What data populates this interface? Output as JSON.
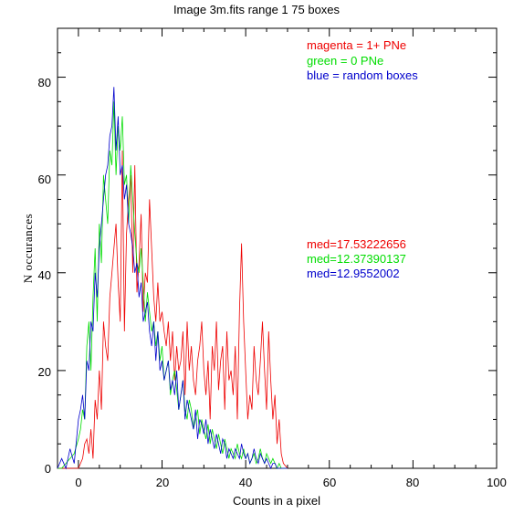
{
  "chart_data": {
    "type": "line",
    "title": "Image 3m.fits   range 1    75 boxes",
    "xlabel": "Counts in a pixel",
    "ylabel": "N  occurances",
    "xlim": [
      -5,
      100
    ],
    "ylim": [
      0,
      90
    ],
    "x_ticks": [
      0,
      20,
      40,
      60,
      80,
      100
    ],
    "y_ticks": [
      0,
      20,
      40,
      60,
      80
    ],
    "grid": false,
    "legend": [
      {
        "text": "magenta = 1+ PNe",
        "color": "#ee0000"
      },
      {
        "text": "green = 0 PNe",
        "color": "#00dd00"
      },
      {
        "text": "blue = random boxes",
        "color": "#0000cc"
      }
    ],
    "medians": [
      {
        "text": "med=17.53222656",
        "color": "#ee0000"
      },
      {
        "text": "med=12.37390137",
        "color": "#00dd00"
      },
      {
        "text": "med=12.9552002",
        "color": "#0000cc"
      }
    ],
    "series": [
      {
        "color": "#ee0000",
        "x": [
          -5,
          -4,
          -3,
          -2,
          -1,
          0,
          0.5,
          1,
          1.5,
          2,
          2.5,
          3,
          3.5,
          4,
          4.5,
          5,
          5.5,
          6,
          6.5,
          7,
          7.5,
          8,
          8.5,
          9,
          9.5,
          10,
          10.5,
          11,
          11.5,
          12,
          12.5,
          13,
          13.5,
          14,
          14.5,
          15,
          15.5,
          16,
          16.5,
          17,
          17.5,
          18,
          18.5,
          19,
          19.5,
          20,
          20.5,
          21,
          21.5,
          22,
          22.5,
          23,
          23.5,
          24,
          24.5,
          25,
          25.5,
          26,
          26.5,
          27,
          27.5,
          28,
          28.5,
          29,
          29.5,
          30,
          30.5,
          31,
          31.5,
          32,
          32.5,
          33,
          33.5,
          34,
          34.5,
          35,
          35.5,
          36,
          36.5,
          37,
          37.5,
          38,
          38.5,
          39,
          39.5,
          40,
          40.5,
          41,
          41.5,
          42,
          42.5,
          43,
          43.5,
          44,
          44.5,
          45,
          45.5,
          46,
          46.5,
          47,
          47.5,
          48,
          48.5,
          49,
          50
        ],
        "y": [
          0,
          0,
          0,
          0,
          0,
          0,
          1,
          2,
          5,
          6,
          3,
          8,
          2,
          14,
          10,
          20,
          12,
          30,
          25,
          22,
          35,
          40,
          45,
          50,
          38,
          30,
          65,
          28,
          48,
          55,
          60,
          40,
          62,
          36,
          42,
          52,
          32,
          40,
          38,
          55,
          45,
          35,
          30,
          38,
          30,
          32,
          28,
          25,
          30,
          22,
          28,
          18,
          25,
          20,
          22,
          28,
          15,
          30,
          20,
          25,
          18,
          15,
          22,
          25,
          30,
          20,
          15,
          22,
          10,
          25,
          20,
          30,
          16,
          22,
          25,
          12,
          28,
          18,
          20,
          15,
          25,
          10,
          32,
          46,
          30,
          20,
          10,
          15,
          12,
          25,
          18,
          15,
          22,
          30,
          20,
          12,
          28,
          18,
          10,
          15,
          5,
          10,
          3,
          1,
          0
        ]
      },
      {
        "color": "#00dd00",
        "x": [
          -5,
          -4,
          -3,
          -2,
          -1,
          0,
          0.5,
          1,
          1.5,
          2,
          2.5,
          3,
          3.5,
          4,
          4.5,
          5,
          5.5,
          6,
          6.5,
          7,
          7.5,
          8,
          8.5,
          9,
          9.5,
          10,
          10.5,
          11,
          11.5,
          12,
          12.5,
          13,
          13.5,
          14,
          14.5,
          15,
          15.5,
          16,
          16.5,
          17,
          17.5,
          18,
          18.5,
          19,
          19.5,
          20,
          20.5,
          21,
          21.5,
          22,
          22.5,
          23,
          23.5,
          24,
          24.5,
          25,
          25.5,
          26,
          26.5,
          27,
          27.5,
          28,
          28.5,
          29,
          29.5,
          30,
          30.5,
          31,
          31.5,
          32,
          32.5,
          33,
          33.5,
          34,
          34.5,
          35,
          35.5,
          36,
          36.5,
          37,
          37.5,
          38,
          38.5,
          39,
          39.5,
          40,
          40.5,
          41,
          41.5,
          42,
          42.5,
          43,
          43.5,
          44,
          44.5,
          45,
          45.5,
          46,
          46.5,
          47,
          47.5,
          48,
          48.5,
          49,
          50
        ],
        "y": [
          0,
          0,
          1,
          2,
          3,
          6,
          8,
          12,
          10,
          25,
          30,
          20,
          35,
          45,
          30,
          50,
          42,
          60,
          55,
          50,
          65,
          62,
          75,
          60,
          70,
          65,
          72,
          58,
          60,
          50,
          62,
          55,
          48,
          42,
          40,
          45,
          38,
          30,
          36,
          32,
          28,
          30,
          25,
          28,
          22,
          25,
          18,
          20,
          22,
          15,
          18,
          20,
          16,
          12,
          15,
          18,
          12,
          10,
          14,
          12,
          8,
          10,
          12,
          7,
          10,
          8,
          6,
          9,
          5,
          8,
          6,
          4,
          7,
          5,
          3,
          6,
          4,
          2,
          4,
          3,
          2,
          5,
          3,
          2,
          4,
          2,
          3,
          1,
          2,
          3,
          1,
          2,
          4,
          2,
          1,
          3,
          2,
          1,
          2,
          1,
          0,
          1,
          0,
          0,
          0
        ]
      },
      {
        "color": "#0000cc",
        "x": [
          -5,
          -4,
          -3,
          -2,
          -1,
          0,
          0.5,
          1,
          1.5,
          2,
          2.5,
          3,
          3.5,
          4,
          4.5,
          5,
          5.5,
          6,
          6.5,
          7,
          7.5,
          8,
          8.5,
          9,
          9.5,
          10,
          10.5,
          11,
          11.5,
          12,
          12.5,
          13,
          13.5,
          14,
          14.5,
          15,
          15.5,
          16,
          16.5,
          17,
          17.5,
          18,
          18.5,
          19,
          19.5,
          20,
          20.5,
          21,
          21.5,
          22,
          22.5,
          23,
          23.5,
          24,
          24.5,
          25,
          25.5,
          26,
          26.5,
          27,
          27.5,
          28,
          28.5,
          29,
          29.5,
          30,
          30.5,
          31,
          31.5,
          32,
          32.5,
          33,
          33.5,
          34,
          34.5,
          35,
          35.5,
          36,
          36.5,
          37,
          37.5,
          38,
          38.5,
          39,
          39.5,
          40,
          40.5,
          41,
          41.5,
          42,
          42.5,
          43,
          43.5,
          44,
          44.5,
          45,
          45.5,
          46,
          46.5,
          47,
          47.5,
          48,
          48.5,
          49,
          50
        ],
        "y": [
          0,
          2,
          0,
          4,
          1,
          10,
          12,
          15,
          10,
          22,
          20,
          30,
          28,
          40,
          35,
          45,
          50,
          55,
          60,
          62,
          68,
          70,
          78,
          65,
          72,
          60,
          62,
          55,
          58,
          50,
          48,
          45,
          40,
          42,
          35,
          38,
          30,
          32,
          34,
          28,
          25,
          30,
          22,
          28,
          20,
          22,
          18,
          20,
          22,
          16,
          18,
          15,
          20,
          12,
          15,
          18,
          10,
          14,
          12,
          10,
          8,
          12,
          6,
          10,
          9,
          7,
          10,
          5,
          8,
          6,
          4,
          7,
          5,
          3,
          6,
          5,
          2,
          4,
          3,
          2,
          4,
          3,
          2,
          5,
          3,
          2,
          3,
          1,
          2,
          4,
          2,
          1,
          3,
          2,
          1,
          2,
          1,
          0,
          1,
          1,
          0,
          0,
          0,
          0,
          0
        ]
      }
    ]
  }
}
